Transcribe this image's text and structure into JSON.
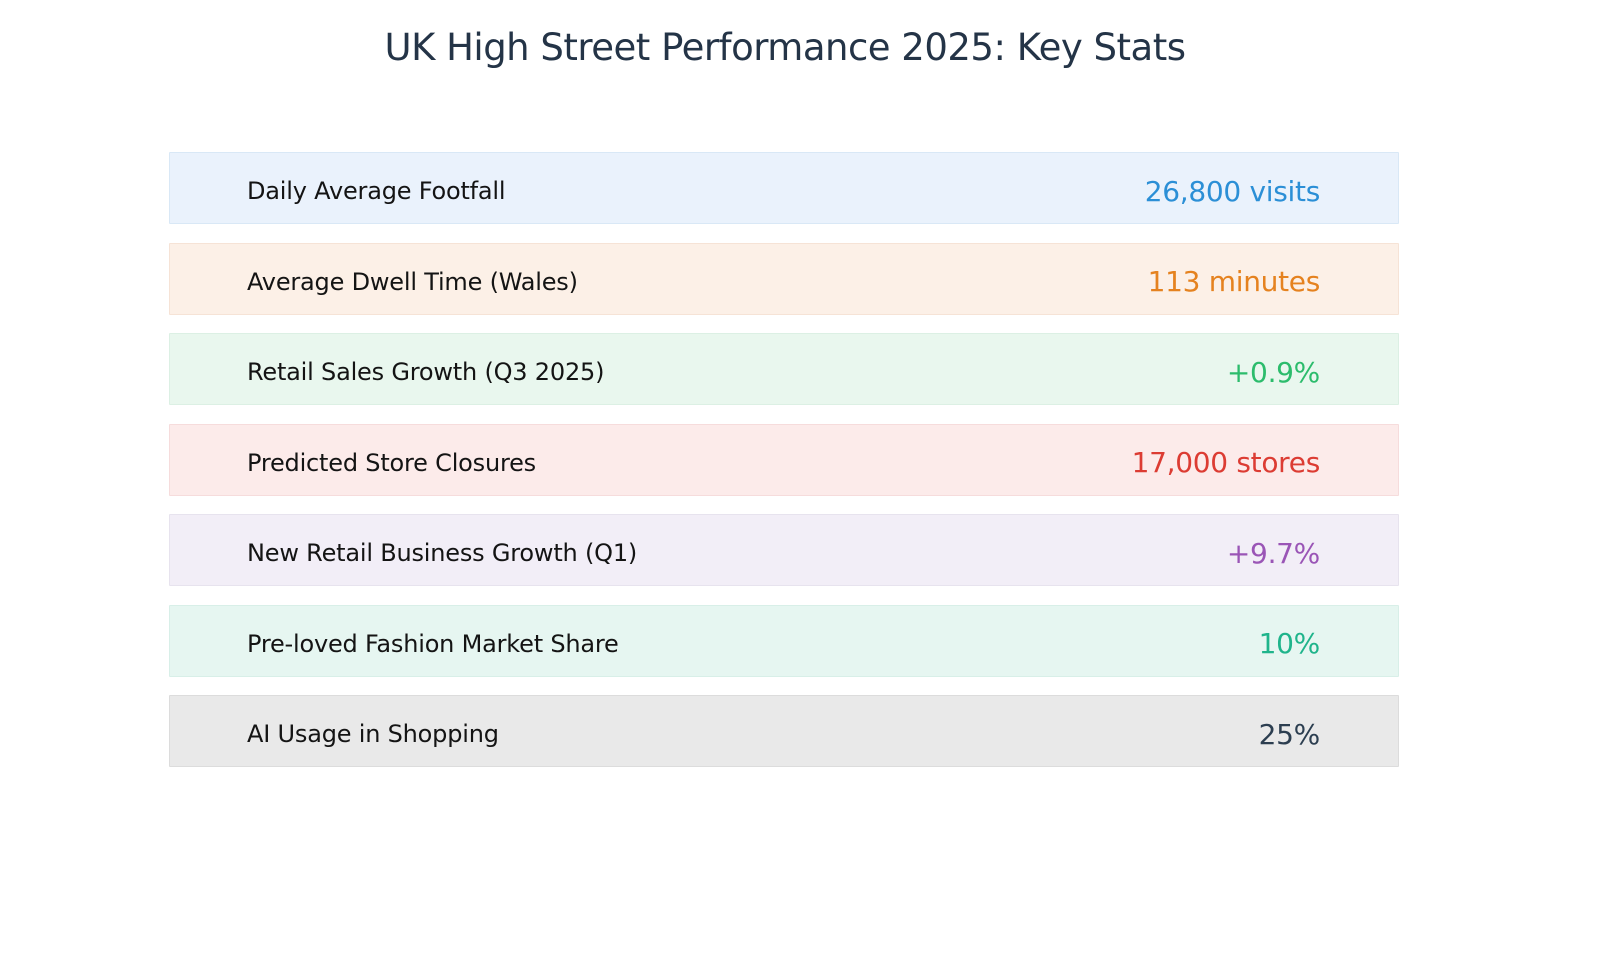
{
  "page": {
    "title": "UK High Street Performance 2025: Key Stats"
  },
  "stats": [
    {
      "label": "Daily Average Footfall",
      "value": "26,800 visits",
      "value_color": "#2b8fd6",
      "bg_color": "#eaf2fc",
      "border_color": "#d9e8f6"
    },
    {
      "label": "Average Dwell Time (Wales)",
      "value": "113 minutes",
      "value_color": "#e5821f",
      "bg_color": "#fcf0e7",
      "border_color": "#f6e3d6"
    },
    {
      "label": "Retail Sales Growth (Q3 2025)",
      "value": "+0.9%",
      "value_color": "#2cbc6c",
      "bg_color": "#e9f7ee",
      "border_color": "#dcf0e4"
    },
    {
      "label": "Predicted Store Closures",
      "value": "17,000 stores",
      "value_color": "#dc3c33",
      "bg_color": "#fcebea",
      "border_color": "#f6dcdc"
    },
    {
      "label": "New Retail Business Growth (Q1)",
      "value": "+9.7%",
      "value_color": "#9a55b6",
      "bg_color": "#f2eef7",
      "border_color": "#e7e3ee"
    },
    {
      "label": "Pre-loved Fashion Market Share",
      "value": "10%",
      "value_color": "#1fb48b",
      "bg_color": "#e6f6f1",
      "border_color": "#d8efe8"
    },
    {
      "label": "AI Usage in Shopping",
      "value": "25%",
      "value_color": "#2c3e50",
      "bg_color": "#e9e9e9",
      "border_color": "#dcdcdc"
    }
  ]
}
